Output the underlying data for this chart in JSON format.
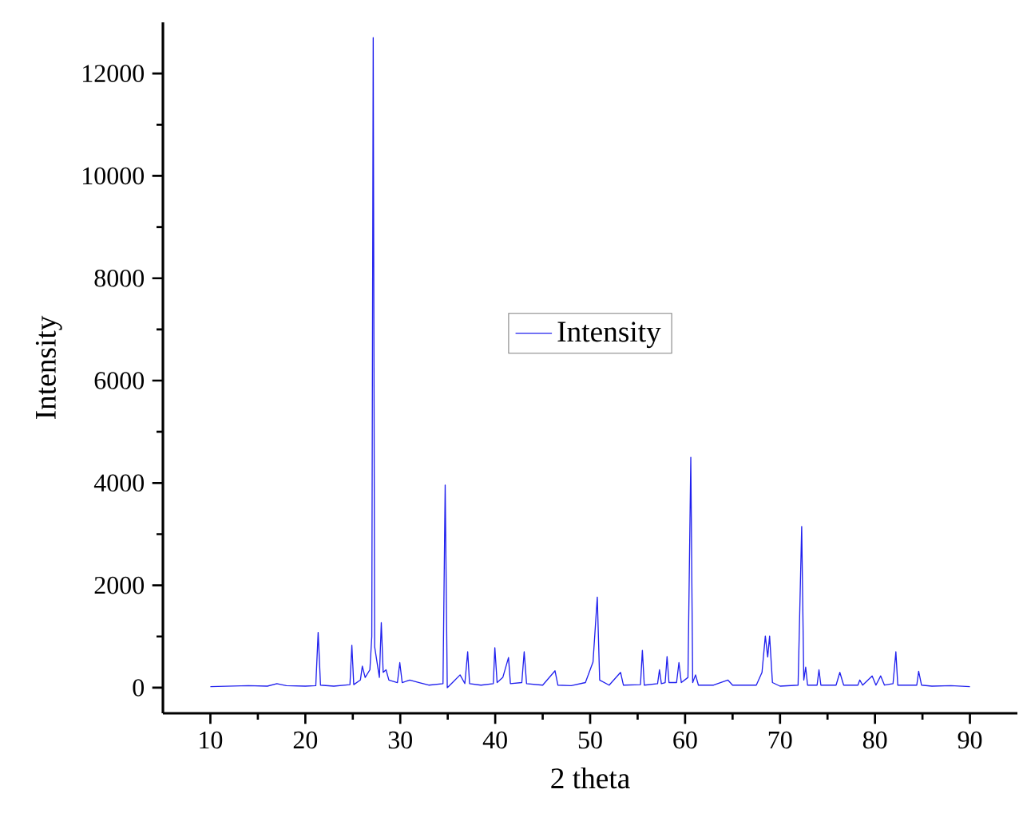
{
  "chart_data": {
    "type": "line",
    "xlabel": "2 theta",
    "ylabel": "Intensity",
    "xlim": [
      5,
      95
    ],
    "ylim": [
      -500,
      13000
    ],
    "xticks": [
      10,
      20,
      30,
      40,
      50,
      60,
      70,
      80,
      90
    ],
    "yticks": [
      0,
      2000,
      4000,
      6000,
      8000,
      10000,
      12000
    ],
    "legend": "center",
    "series": [
      {
        "name": "Intensity",
        "color": "#2020ee",
        "x": [
          10,
          12,
          14,
          16,
          17,
          18,
          20,
          21.1,
          21.35,
          21.6,
          23,
          24.7,
          24.9,
          25.1,
          25.8,
          26.0,
          26.3,
          26.8,
          27.0,
          27.15,
          27.3,
          27.8,
          28.0,
          28.2,
          28.5,
          28.8,
          29.7,
          29.95,
          30.2,
          31,
          32,
          33,
          34.5,
          34.73,
          34.95,
          35.5,
          36.3,
          36.8,
          37.1,
          37.3,
          38.5,
          39.8,
          39.96,
          40.2,
          40.8,
          41.4,
          41.6,
          42.8,
          43.05,
          43.3,
          45,
          46.3,
          46.6,
          48,
          49.5,
          50.3,
          50.75,
          51,
          52,
          53.2,
          53.5,
          55.3,
          55.5,
          55.7,
          57.1,
          57.3,
          57.5,
          57.9,
          58.1,
          58.3,
          59.1,
          59.35,
          59.6,
          60.3,
          60.6,
          60.8,
          61.1,
          61.4,
          63,
          64.5,
          65,
          67.5,
          68.1,
          68.45,
          68.7,
          68.9,
          69.2,
          70,
          71.9,
          72.28,
          72.5,
          72.7,
          72.9,
          73.9,
          74.1,
          74.3,
          75.9,
          76.3,
          76.7,
          78.2,
          78.4,
          78.7,
          79.7,
          80.1,
          80.6,
          81,
          81.9,
          82.2,
          82.4,
          84.4,
          84.6,
          84.9,
          86,
          88,
          90
        ],
        "values": [
          20,
          30,
          40,
          30,
          80,
          40,
          30,
          40,
          1080,
          50,
          30,
          60,
          830,
          60,
          150,
          420,
          200,
          350,
          1000,
          12700,
          800,
          200,
          1270,
          300,
          350,
          150,
          100,
          490,
          100,
          150,
          100,
          50,
          80,
          3960,
          0,
          100,
          250,
          80,
          700,
          80,
          50,
          80,
          780,
          100,
          200,
          590,
          80,
          100,
          700,
          80,
          50,
          330,
          50,
          40,
          100,
          500,
          1770,
          150,
          50,
          300,
          50,
          60,
          730,
          50,
          80,
          350,
          80,
          100,
          610,
          100,
          100,
          490,
          100,
          200,
          4500,
          100,
          250,
          50,
          50,
          150,
          50,
          50,
          300,
          1010,
          600,
          1010,
          100,
          30,
          50,
          3150,
          150,
          400,
          50,
          50,
          350,
          50,
          50,
          300,
          50,
          50,
          150,
          50,
          230,
          50,
          230,
          50,
          80,
          700,
          50,
          50,
          320,
          50,
          30,
          40,
          20
        ]
      }
    ]
  }
}
